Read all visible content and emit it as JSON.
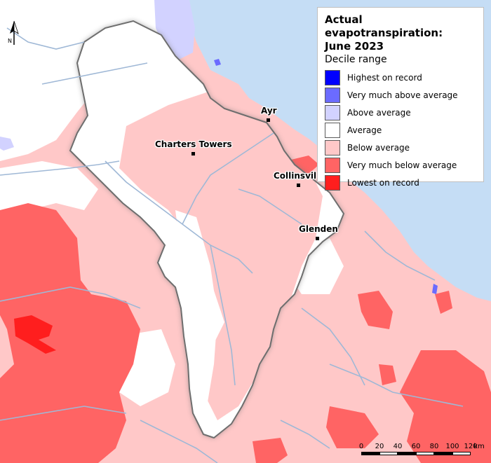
{
  "legend": {
    "title_line1": "Actual evapotranspiration:",
    "title_line2": "June 2023",
    "subtitle": "Decile range",
    "items": [
      {
        "label": "Highest on record",
        "color": "#0000ff"
      },
      {
        "label": "Very much above average",
        "color": "#6b6bff"
      },
      {
        "label": "Above average",
        "color": "#d2d2ff"
      },
      {
        "label": "Average",
        "color": "#ffffff"
      },
      {
        "label": "Below average",
        "color": "#ffc8c8"
      },
      {
        "label": "Very much below average",
        "color": "#ff6464"
      },
      {
        "label": "Lowest on record",
        "color": "#ff1e1e"
      }
    ]
  },
  "places": {
    "ayr": "Ayr",
    "charters_towers": "Charters Towers",
    "collinsville": "Collinsvil",
    "glenden": "Glenden"
  },
  "north_label": "N",
  "scale": {
    "labels": [
      "0",
      "20",
      "40",
      "60",
      "80",
      "100",
      "120"
    ],
    "unit": "km"
  },
  "colors": {
    "sea": "#c5ddf5",
    "river": "#9fb8d6",
    "catchment_outline": "#6e6e6e"
  }
}
